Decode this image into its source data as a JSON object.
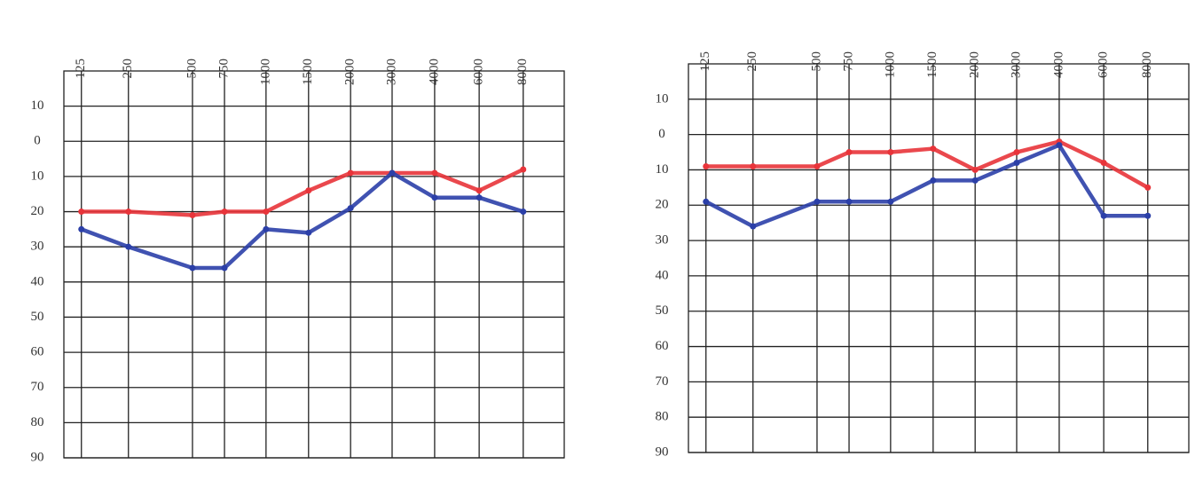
{
  "chart_data": [
    {
      "type": "line",
      "categories": [
        "125",
        "250",
        "500",
        "750",
        "1000",
        "1500",
        "2000",
        "3000",
        "4000",
        "6000",
        "8000"
      ],
      "series": [
        {
          "color": "#e8343a",
          "values": [
            20,
            20,
            21,
            20,
            20,
            14,
            9,
            9,
            9,
            14,
            8
          ]
        },
        {
          "color": "#2b3fa8",
          "values": [
            25,
            30,
            36,
            36,
            25,
            26,
            19,
            9,
            16,
            16,
            20
          ]
        }
      ],
      "ylim": [
        -20,
        90
      ],
      "invert_y": true,
      "yticks": [
        {
          "value": -10,
          "label": "10"
        },
        0,
        10,
        20,
        30,
        40,
        50,
        60,
        70,
        80,
        90
      ],
      "grid": true
    },
    {
      "type": "line",
      "categories": [
        "125",
        "250",
        "500",
        "750",
        "1000",
        "1500",
        "2000",
        "3000",
        "4000",
        "6000",
        "8000"
      ],
      "series": [
        {
          "color": "#e8343a",
          "values": [
            9,
            9,
            9,
            5,
            5,
            4,
            10,
            5,
            2,
            8,
            15
          ]
        },
        {
          "color": "#2b3fa8",
          "values": [
            19,
            26,
            19,
            19,
            19,
            13,
            13,
            8,
            3,
            23,
            23
          ]
        }
      ],
      "ylim": [
        -20,
        90
      ],
      "invert_y": true,
      "yticks": [
        {
          "value": -10,
          "label": "10"
        },
        0,
        10,
        20,
        30,
        40,
        50,
        60,
        70,
        80,
        90
      ],
      "grid": true
    }
  ]
}
